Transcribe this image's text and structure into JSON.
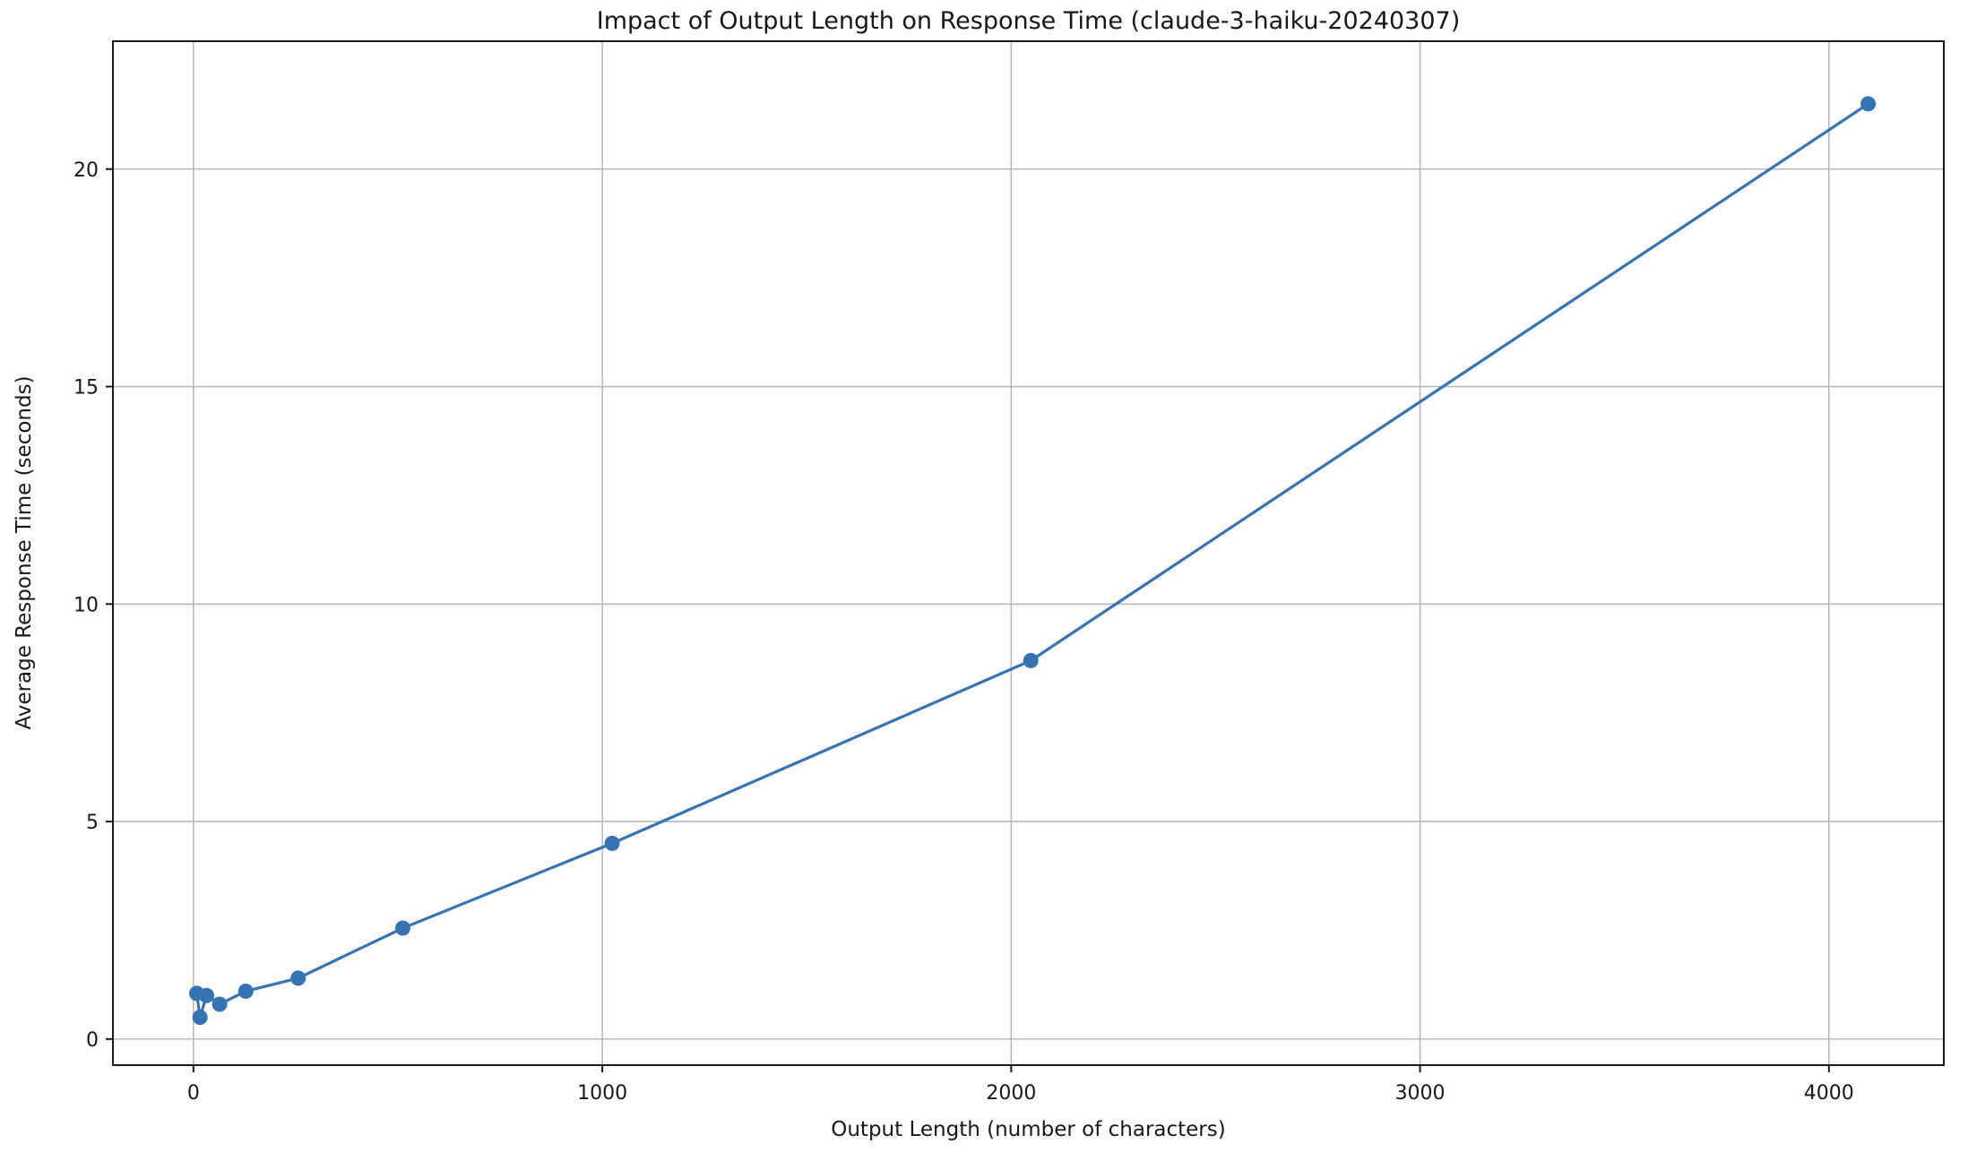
{
  "chart_data": {
    "type": "line",
    "title": "Impact of Output Length on Response Time (claude-3-haiku-20240307)",
    "xlabel": "Output Length (number of characters)",
    "ylabel": "Average Response Time (seconds)",
    "series": [
      {
        "name": "average response time",
        "x": [
          8,
          16,
          32,
          64,
          128,
          256,
          512,
          1024,
          2048,
          4096
        ],
        "y": [
          1.05,
          0.5,
          1.0,
          0.8,
          1.1,
          1.4,
          2.55,
          4.5,
          8.7,
          21.5
        ]
      }
    ],
    "xticks": [
      0,
      1000,
      2000,
      3000,
      4000
    ],
    "yticks": [
      0,
      5,
      10,
      15,
      20
    ],
    "xtick_labels": [
      "0",
      "1000",
      "2000",
      "3000",
      "4000"
    ],
    "ytick_labels": [
      "0",
      "5",
      "10",
      "15",
      "20"
    ],
    "xlim": [
      -197,
      4281
    ],
    "ylim": [
      -0.6,
      22.94
    ],
    "grid": true,
    "legend": "none",
    "colors": {
      "line": "#3573b2",
      "marker": "#3573b2",
      "grid": "#b9b9b9",
      "spine": "#1a1a1a",
      "background": "#ffffff",
      "text": "#181818"
    },
    "marker_style": "circle",
    "line_width": 3.2,
    "marker_radius": 8.5
  }
}
